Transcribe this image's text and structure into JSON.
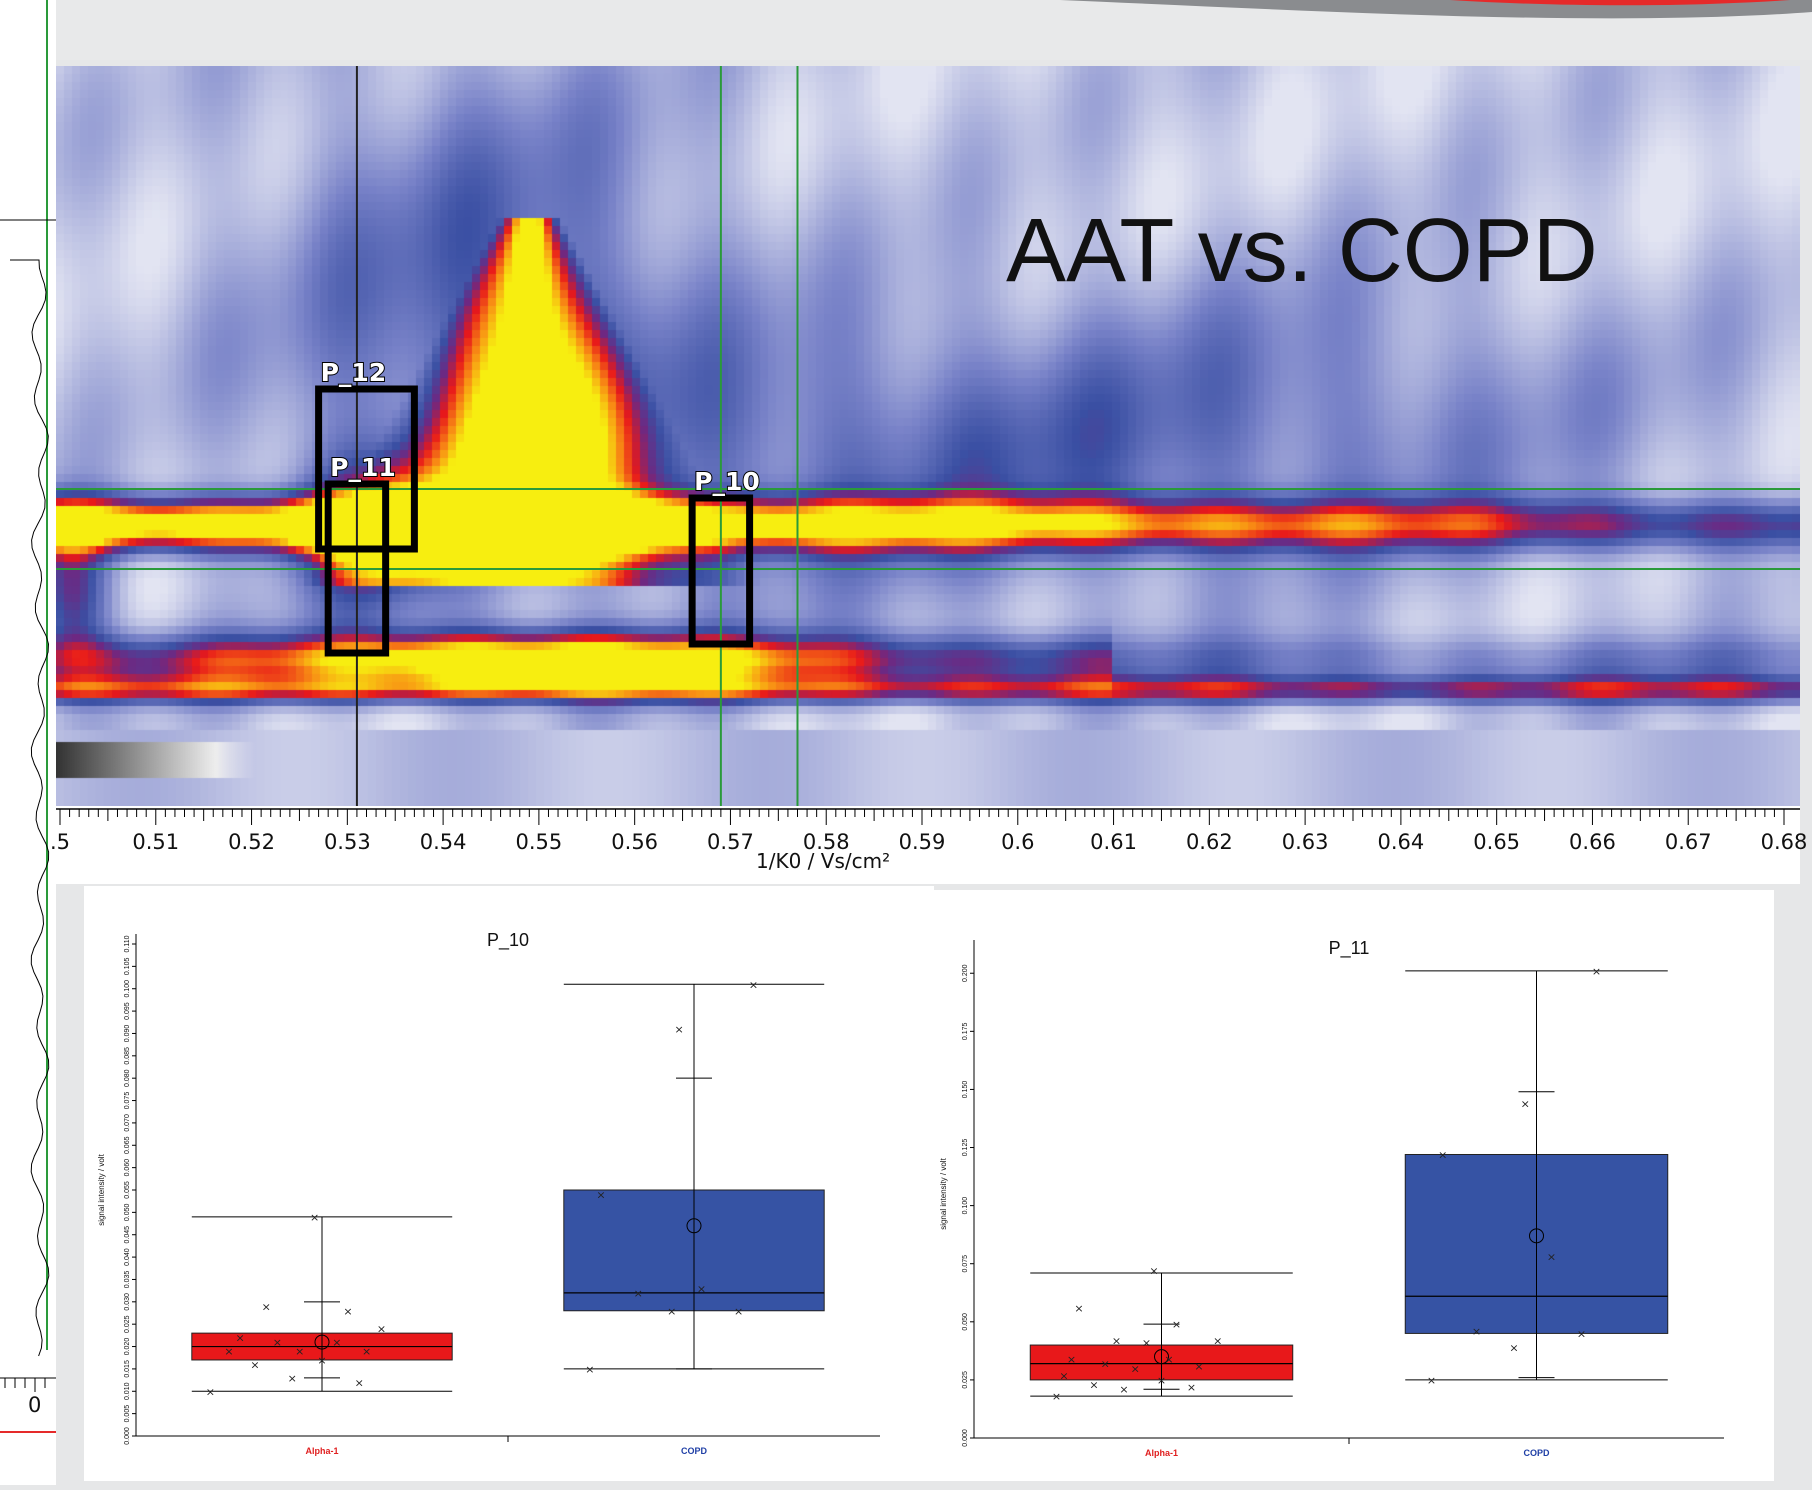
{
  "heatmap": {
    "title": "AAT vs. COPD",
    "xlabel": "1/K0 / Vs/cm²",
    "left_axis_label": "0",
    "peaks": [
      {
        "label": "P_12",
        "x0": 0.527,
        "x1": 0.537
      },
      {
        "label": "P_11",
        "x0": 0.528,
        "x1": 0.534
      },
      {
        "label": "P_10",
        "x0": 0.566,
        "x1": 0.572
      }
    ],
    "crosshair_x": [
      0.531,
      0.569,
      0.577
    ],
    "xticks": [
      ".5",
      "0.51",
      "0.52",
      "0.53",
      "0.54",
      "0.55",
      "0.56",
      "0.57",
      "0.58",
      "0.59",
      "0.6",
      "0.61",
      "0.62",
      "0.63",
      "0.64",
      "0.65",
      "0.66",
      "0.67",
      "0.68"
    ],
    "colors": {
      "low": "#3a4fa3",
      "mid": "#e8181a",
      "high": "#f7ee10",
      "bg": "#dcdff0"
    }
  },
  "chart_data": [
    {
      "type": "box",
      "title": "P_10",
      "ylabel": "signal intensity / volt",
      "yticks": [
        "0.000",
        "0.005",
        "0.010",
        "0.015",
        "0.020",
        "0.025",
        "0.030",
        "0.035",
        "0.040",
        "0.045",
        "0.050",
        "0.055",
        "0.060",
        "0.065",
        "0.070",
        "0.075",
        "0.080",
        "0.085",
        "0.090",
        "0.095",
        "0.100",
        "0.105",
        "0.110"
      ],
      "ylim": [
        0,
        0.11
      ],
      "categories": [
        "Alpha-1",
        "COPD"
      ],
      "category_colors": [
        "#e02020",
        "#1f3fa6"
      ],
      "series": [
        {
          "name": "Alpha-1",
          "color": "#e8181a",
          "whisker_low": 0.01,
          "q1": 0.017,
          "median": 0.02,
          "q3": 0.023,
          "whisker_high": 0.049,
          "mean": 0.021,
          "sd_high": 0.03,
          "sd_low": 0.013,
          "points": [
            [
              0.4,
              0.01
            ],
            [
              0.45,
              0.019
            ],
            [
              0.48,
              0.022
            ],
            [
              0.52,
              0.016
            ],
            [
              0.55,
              0.029
            ],
            [
              0.58,
              0.021
            ],
            [
              0.62,
              0.013
            ],
            [
              0.64,
              0.019
            ],
            [
              0.68,
              0.049
            ],
            [
              0.7,
              0.017
            ],
            [
              0.74,
              0.021
            ],
            [
              0.77,
              0.028
            ],
            [
              0.8,
              0.012
            ],
            [
              0.82,
              0.019
            ],
            [
              0.86,
              0.024
            ]
          ]
        },
        {
          "name": "COPD",
          "color": "#3653a4",
          "whisker_low": 0.015,
          "q1": 0.028,
          "median": 0.032,
          "q3": 0.055,
          "whisker_high": 0.101,
          "mean": 0.047,
          "sd_high": 0.08,
          "sd_low": 0.015,
          "points": [
            [
              0.42,
              0.015
            ],
            [
              0.45,
              0.054
            ],
            [
              0.55,
              0.032
            ],
            [
              0.64,
              0.028
            ],
            [
              0.66,
              0.091
            ],
            [
              0.72,
              0.033
            ],
            [
              0.82,
              0.028
            ],
            [
              0.86,
              0.101
            ]
          ]
        }
      ]
    },
    {
      "type": "box",
      "title": "P_11",
      "ylabel": "signal intensity / volt",
      "yticks": [
        "0.000",
        "0.025",
        "0.050",
        "0.075",
        "0.100",
        "0.125",
        "0.150",
        "0.175",
        "0.200"
      ],
      "ylim": [
        0,
        0.21
      ],
      "categories": [
        "Alpha-1",
        "COPD"
      ],
      "category_colors": [
        "#e02020",
        "#1f3fa6"
      ],
      "series": [
        {
          "name": "Alpha-1",
          "color": "#e8181a",
          "whisker_low": 0.018,
          "q1": 0.025,
          "median": 0.032,
          "q3": 0.04,
          "whisker_high": 0.071,
          "mean": 0.035,
          "sd_high": 0.049,
          "sd_low": 0.021,
          "points": [
            [
              0.42,
              0.018
            ],
            [
              0.44,
              0.027
            ],
            [
              0.46,
              0.034
            ],
            [
              0.48,
              0.056
            ],
            [
              0.52,
              0.023
            ],
            [
              0.55,
              0.032
            ],
            [
              0.58,
              0.042
            ],
            [
              0.6,
              0.021
            ],
            [
              0.63,
              0.03
            ],
            [
              0.66,
              0.041
            ],
            [
              0.68,
              0.072
            ],
            [
              0.7,
              0.025
            ],
            [
              0.72,
              0.034
            ],
            [
              0.74,
              0.049
            ],
            [
              0.78,
              0.022
            ],
            [
              0.8,
              0.031
            ],
            [
              0.85,
              0.042
            ]
          ]
        },
        {
          "name": "COPD",
          "color": "#3653a4",
          "whisker_low": 0.025,
          "q1": 0.045,
          "median": 0.061,
          "q3": 0.122,
          "whisker_high": 0.201,
          "mean": 0.087,
          "sd_high": 0.149,
          "sd_low": 0.026,
          "points": [
            [
              0.42,
              0.025
            ],
            [
              0.45,
              0.122
            ],
            [
              0.54,
              0.046
            ],
            [
              0.64,
              0.039
            ],
            [
              0.67,
              0.144
            ],
            [
              0.74,
              0.078
            ],
            [
              0.82,
              0.045
            ],
            [
              0.86,
              0.201
            ]
          ]
        }
      ]
    }
  ]
}
